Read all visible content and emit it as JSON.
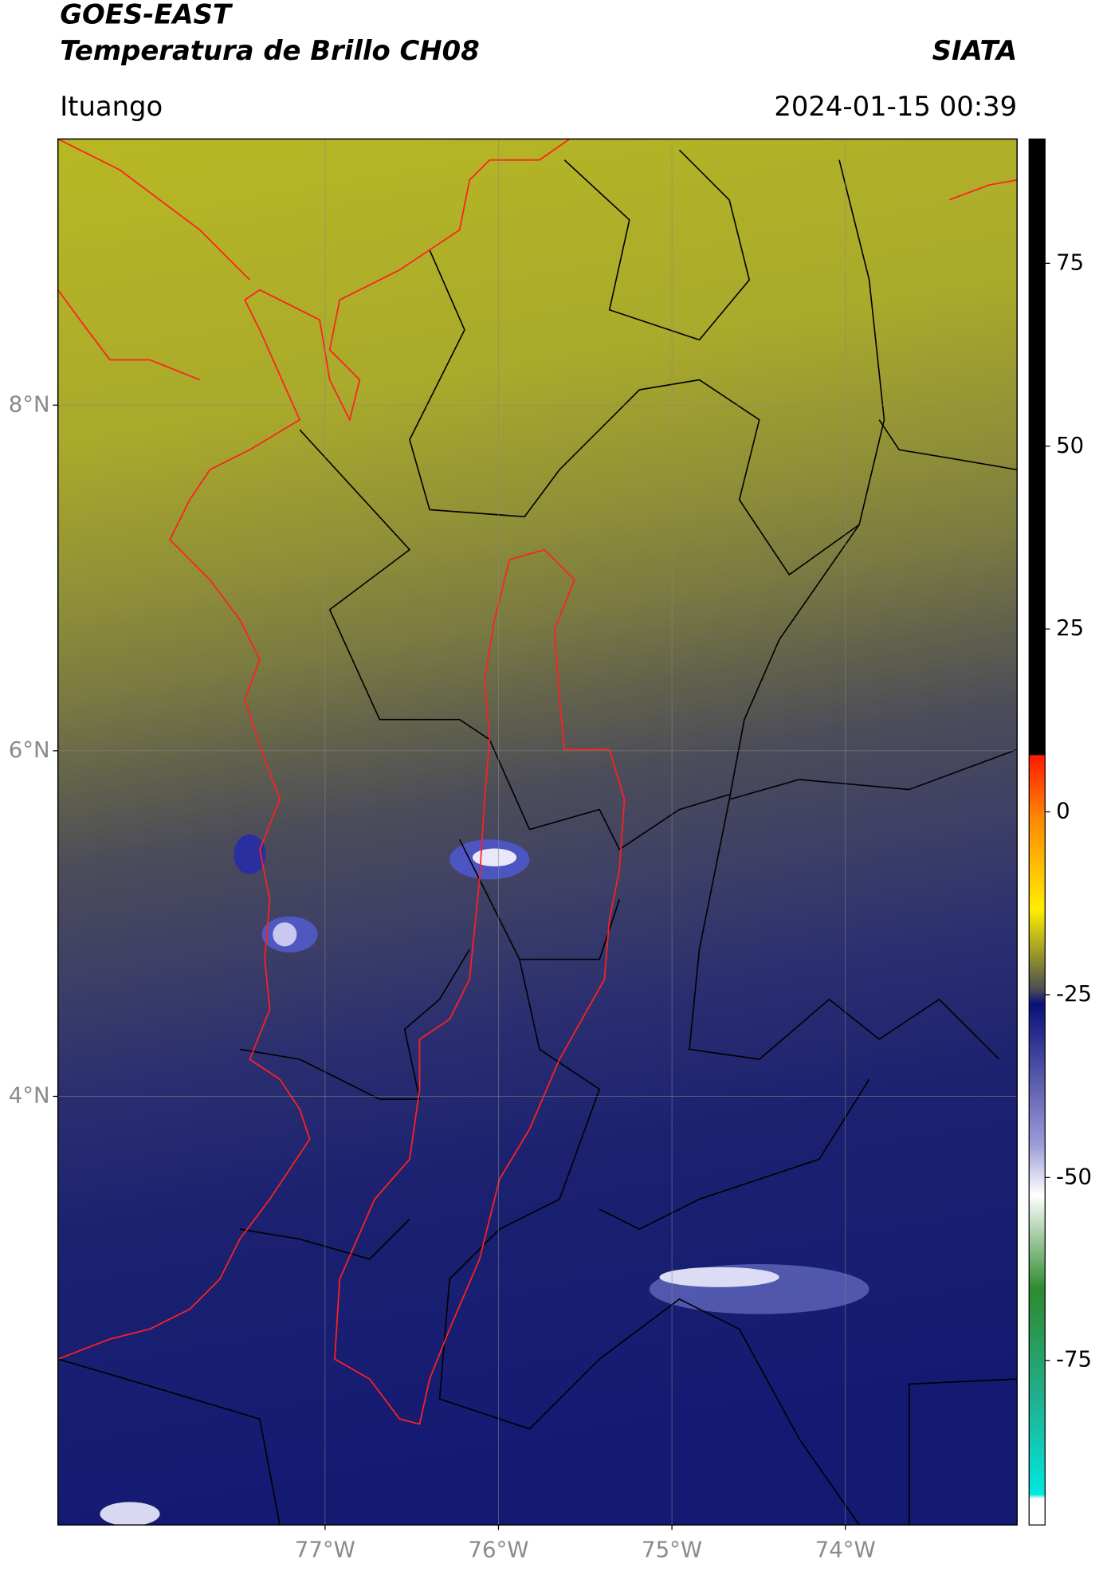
{
  "header": {
    "title": "GOES-EAST",
    "subtitle": "Temperatura de Brillo CH08",
    "source": "SIATA",
    "location": "Ituango",
    "datetime": "2024-01-15 00:39"
  },
  "map": {
    "lonlim": [
      -78.54,
      -73.01
    ],
    "latlim": [
      1.52,
      9.54
    ],
    "grid": true,
    "lat_ticks": [
      {
        "value": 8,
        "label": "8°N"
      },
      {
        "value": 6,
        "label": "6°N"
      },
      {
        "value": 4,
        "label": "4°N"
      }
    ],
    "lon_ticks": [
      {
        "value": -77,
        "label": "77°W"
      },
      {
        "value": -76,
        "label": "76°W"
      },
      {
        "value": -75,
        "label": "75°W"
      },
      {
        "value": -74,
        "label": "74°W"
      }
    ]
  },
  "colorbar": {
    "lim": [
      -97.5,
      92
    ],
    "ticks": [
      75,
      50,
      25,
      0,
      -25,
      -50,
      -75
    ]
  }
}
